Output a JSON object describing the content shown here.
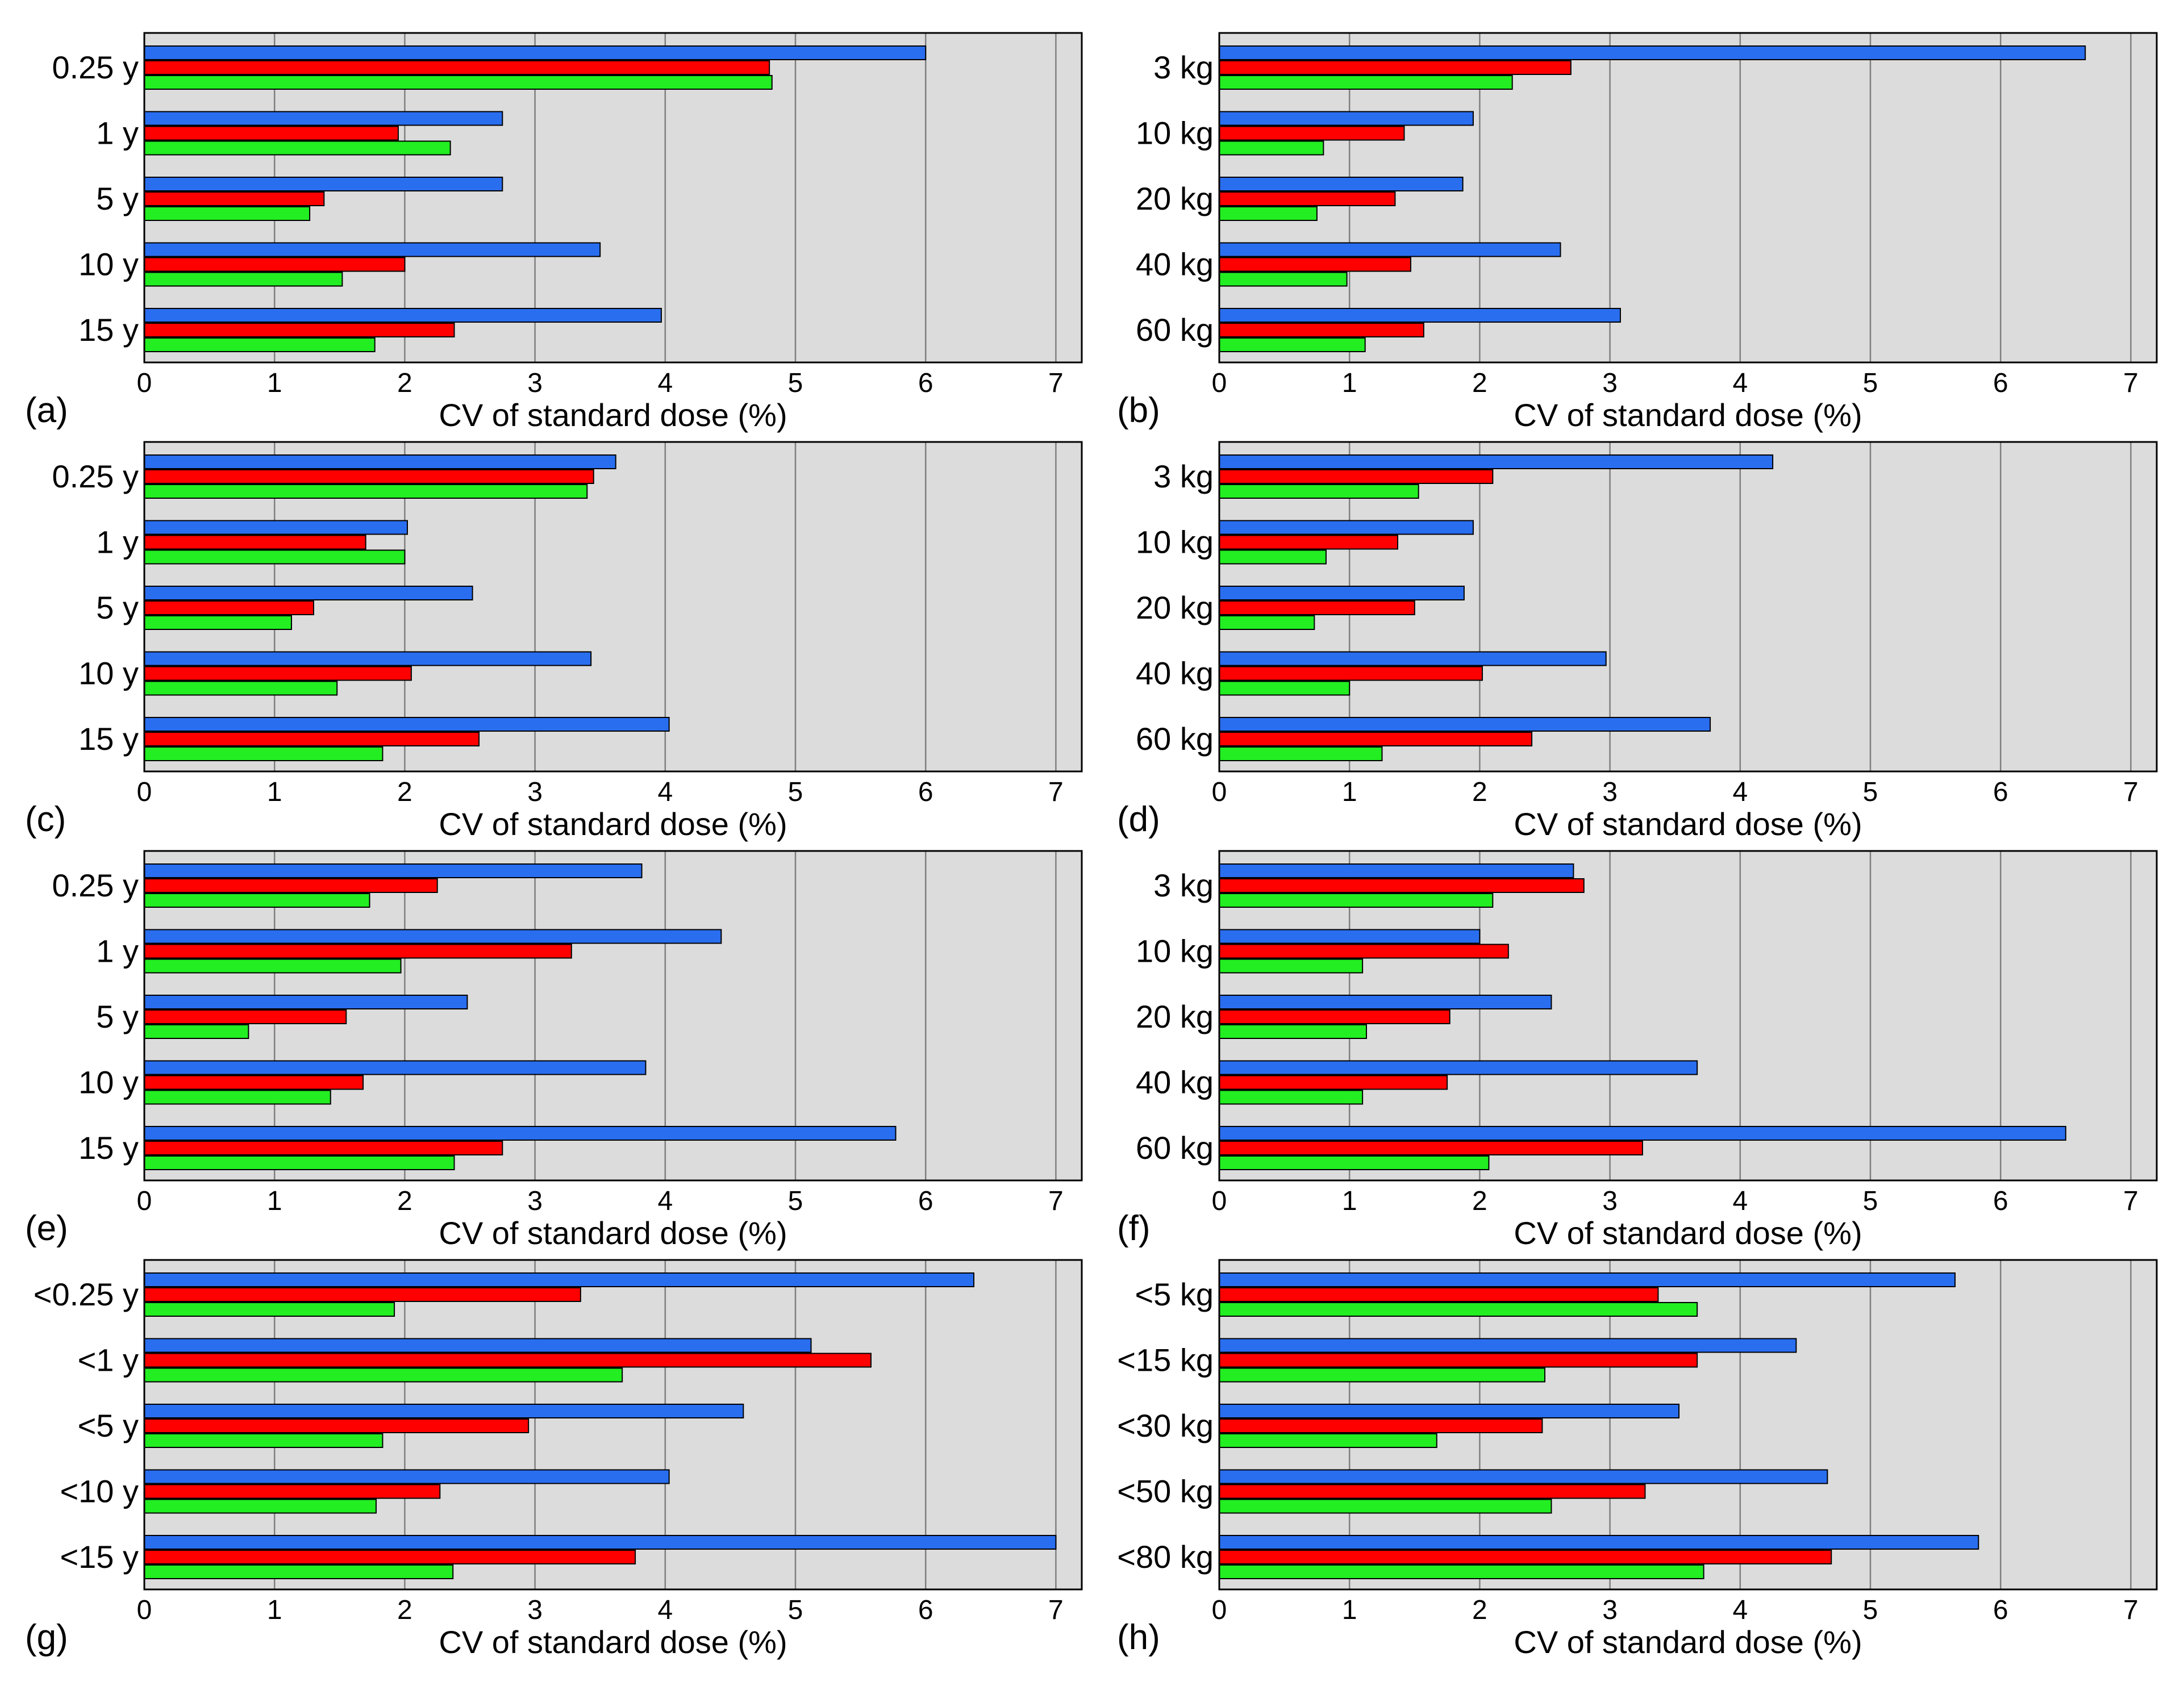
{
  "colors": {
    "series_1": "#2a6ef0",
    "series_2": "#ff0000",
    "series_3": "#22ee22",
    "plot_background": "#dcdcdc",
    "grid": "#7f7f7f"
  },
  "chart_data": [
    {
      "type": "bar",
      "orientation": "horizontal",
      "panel_label": "(a)",
      "xlabel": "CV of standard dose (%)",
      "xlim": [
        0,
        7.2
      ],
      "xticks": [
        "0",
        "1",
        "2",
        "3",
        "4",
        "5",
        "6",
        "7"
      ],
      "grid": "vertical",
      "categories": [
        "0.25 y",
        "1 y",
        "5 y",
        "10 y",
        "15 y"
      ],
      "series": [
        {
          "name": "blue",
          "values": [
            6.0,
            2.75,
            2.75,
            3.5,
            3.97
          ]
        },
        {
          "name": "red",
          "values": [
            4.8,
            1.95,
            1.38,
            2.0,
            2.38
          ]
        },
        {
          "name": "green",
          "values": [
            4.82,
            2.35,
            1.27,
            1.52,
            1.77
          ]
        }
      ]
    },
    {
      "type": "bar",
      "orientation": "horizontal",
      "panel_label": "(b)",
      "xlabel": "CV of standard dose (%)",
      "xlim": [
        0,
        7.2
      ],
      "xticks": [
        "0",
        "1",
        "2",
        "3",
        "4",
        "5",
        "6",
        "7"
      ],
      "grid": "vertical",
      "categories": [
        "3 kg",
        "10 kg",
        "20 kg",
        "40 kg",
        "60 kg"
      ],
      "series": [
        {
          "name": "blue",
          "values": [
            6.65,
            1.95,
            1.87,
            2.62,
            3.08
          ]
        },
        {
          "name": "red",
          "values": [
            2.7,
            1.42,
            1.35,
            1.47,
            1.57
          ]
        },
        {
          "name": "green",
          "values": [
            2.25,
            0.8,
            0.75,
            0.98,
            1.12
          ]
        }
      ]
    },
    {
      "type": "bar",
      "orientation": "horizontal",
      "panel_label": "(c)",
      "xlabel": "CV of standard dose (%)",
      "xlim": [
        0,
        7.2
      ],
      "xticks": [
        "0",
        "1",
        "2",
        "3",
        "4",
        "5",
        "6",
        "7"
      ],
      "grid": "vertical",
      "categories": [
        "0.25 y",
        "1 y",
        "5 y",
        "10 y",
        "15 y"
      ],
      "series": [
        {
          "name": "blue",
          "values": [
            3.62,
            2.02,
            2.52,
            3.43,
            4.03
          ]
        },
        {
          "name": "red",
          "values": [
            3.45,
            1.7,
            1.3,
            2.05,
            2.57
          ]
        },
        {
          "name": "green",
          "values": [
            3.4,
            2.0,
            1.13,
            1.48,
            1.83
          ]
        }
      ]
    },
    {
      "type": "bar",
      "orientation": "horizontal",
      "panel_label": "(d)",
      "xlabel": "CV of standard dose (%)",
      "xlim": [
        0,
        7.2
      ],
      "xticks": [
        "0",
        "1",
        "2",
        "3",
        "4",
        "5",
        "6",
        "7"
      ],
      "grid": "vertical",
      "categories": [
        "3 kg",
        "10 kg",
        "20 kg",
        "40 kg",
        "60 kg"
      ],
      "series": [
        {
          "name": "blue",
          "values": [
            4.25,
            1.95,
            1.88,
            2.97,
            3.77
          ]
        },
        {
          "name": "red",
          "values": [
            2.1,
            1.37,
            1.5,
            2.02,
            2.4
          ]
        },
        {
          "name": "green",
          "values": [
            1.53,
            0.82,
            0.73,
            1.0,
            1.25
          ]
        }
      ]
    },
    {
      "type": "bar",
      "orientation": "horizontal",
      "panel_label": "(e)",
      "xlabel": "CV of standard dose (%)",
      "xlim": [
        0,
        7.2
      ],
      "xticks": [
        "0",
        "1",
        "2",
        "3",
        "4",
        "5",
        "6",
        "7"
      ],
      "grid": "vertical",
      "categories": [
        "0.25 y",
        "1 y",
        "5 y",
        "10 y",
        "15 y"
      ],
      "series": [
        {
          "name": "blue",
          "values": [
            3.82,
            4.43,
            2.48,
            3.85,
            5.77
          ]
        },
        {
          "name": "red",
          "values": [
            2.25,
            3.28,
            1.55,
            1.68,
            2.75
          ]
        },
        {
          "name": "green",
          "values": [
            1.73,
            1.97,
            0.8,
            1.43,
            2.38
          ]
        }
      ]
    },
    {
      "type": "bar",
      "orientation": "horizontal",
      "panel_label": "(f)",
      "xlabel": "CV of standard dose (%)",
      "xlim": [
        0,
        7.2
      ],
      "xticks": [
        "0",
        "1",
        "2",
        "3",
        "4",
        "5",
        "6",
        "7"
      ],
      "grid": "vertical",
      "categories": [
        "3 kg",
        "10 kg",
        "20 kg",
        "40 kg",
        "60 kg"
      ],
      "series": [
        {
          "name": "blue",
          "values": [
            2.72,
            2.0,
            2.55,
            3.67,
            6.5
          ]
        },
        {
          "name": "red",
          "values": [
            2.8,
            2.22,
            1.77,
            1.75,
            3.25
          ]
        },
        {
          "name": "green",
          "values": [
            2.1,
            1.1,
            1.13,
            1.1,
            2.07
          ]
        }
      ]
    },
    {
      "type": "bar",
      "orientation": "horizontal",
      "panel_label": "(g)",
      "xlabel": "CV of standard dose (%)",
      "xlim": [
        0,
        7.2
      ],
      "xticks": [
        "0",
        "1",
        "2",
        "3",
        "4",
        "5",
        "6",
        "7"
      ],
      "grid": "vertical",
      "categories": [
        "<0.25 y",
        "<1 y",
        "<5 y",
        "<10 y",
        "<15 y"
      ],
      "series": [
        {
          "name": "blue",
          "values": [
            6.37,
            5.12,
            4.6,
            4.03,
            7.0
          ]
        },
        {
          "name": "red",
          "values": [
            3.35,
            5.58,
            2.95,
            2.27,
            3.77
          ]
        },
        {
          "name": "green",
          "values": [
            1.92,
            3.67,
            1.83,
            1.78,
            2.37
          ]
        }
      ]
    },
    {
      "type": "bar",
      "orientation": "horizontal",
      "panel_label": "(h)",
      "xlabel": "CV of standard dose (%)",
      "xlim": [
        0,
        7.2
      ],
      "xticks": [
        "0",
        "1",
        "2",
        "3",
        "4",
        "5",
        "6",
        "7"
      ],
      "grid": "vertical",
      "categories": [
        "<5 kg",
        "<15 kg",
        "<30 kg",
        "<50 kg",
        "<80 kg"
      ],
      "series": [
        {
          "name": "blue",
          "values": [
            5.65,
            4.43,
            3.53,
            4.67,
            5.83
          ]
        },
        {
          "name": "red",
          "values": [
            3.37,
            3.67,
            2.48,
            3.27,
            4.7
          ]
        },
        {
          "name": "green",
          "values": [
            3.67,
            2.5,
            1.67,
            2.55,
            3.72
          ]
        }
      ]
    }
  ]
}
